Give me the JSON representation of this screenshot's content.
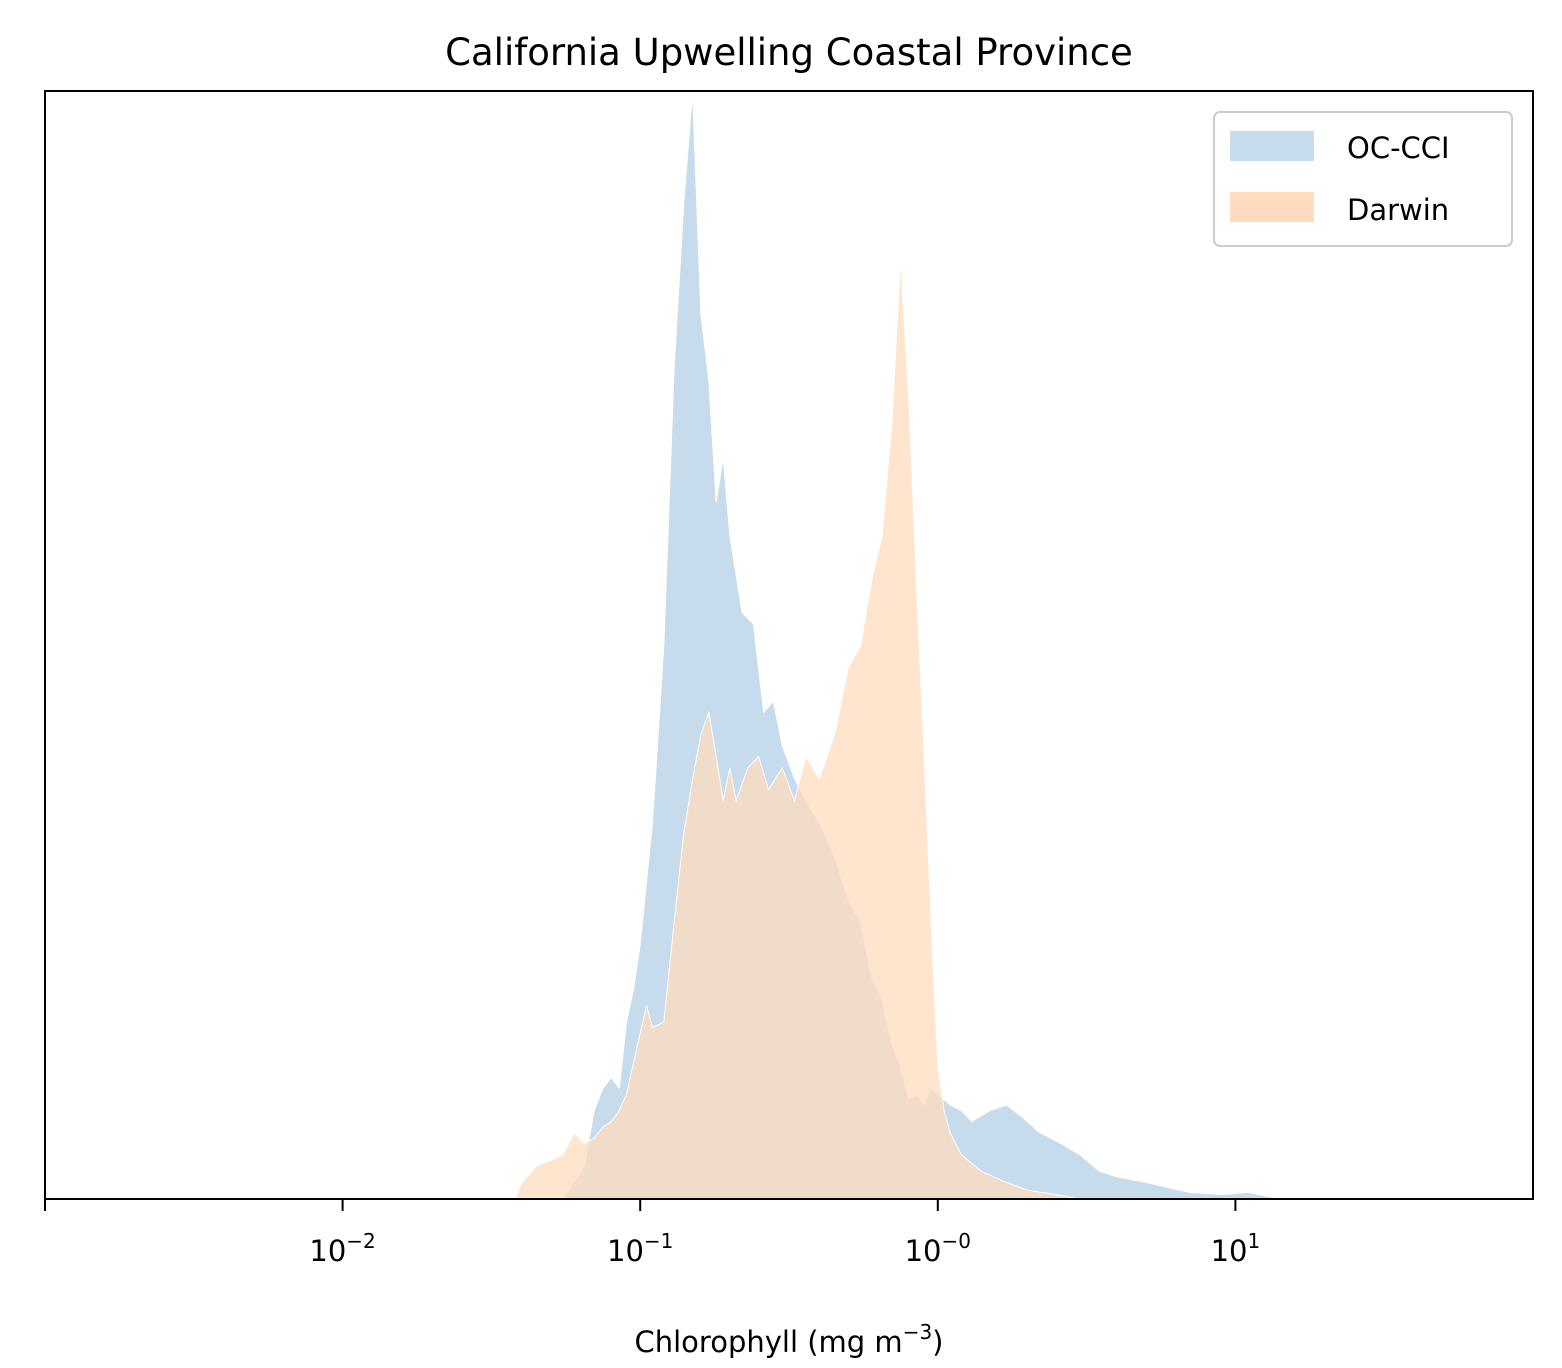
{
  "chart_data": {
    "type": "area",
    "title": "California Upwelling Coastal Province",
    "xlabel": "Chlorophyll  (mg m",
    "xlabel_exp": "−3",
    "xlabel_close": ")",
    "ylabel": "",
    "xscale": "log",
    "xlim": [
      0.001,
      100
    ],
    "ylim": [
      0,
      1
    ],
    "yticks_visible": false,
    "grid": false,
    "legend_position": "top-right",
    "x_ticks": [
      {
        "value": 0.001,
        "base": "",
        "exp": ""
      },
      {
        "value": 0.01,
        "base": "10",
        "exp": "−2"
      },
      {
        "value": 0.1,
        "base": "10",
        "exp": "−1"
      },
      {
        "value": 1,
        "base": "10",
        "exp": "−0"
      },
      {
        "value": 10,
        "base": "10",
        "exp": "1"
      }
    ],
    "series": [
      {
        "name": "OC-CCI",
        "color": "#c6dbec",
        "points": [
          [
            0.055,
            0.0
          ],
          [
            0.06,
            0.015
          ],
          [
            0.065,
            0.03
          ],
          [
            0.07,
            0.08
          ],
          [
            0.075,
            0.1
          ],
          [
            0.08,
            0.11
          ],
          [
            0.085,
            0.1
          ],
          [
            0.09,
            0.16
          ],
          [
            0.095,
            0.19
          ],
          [
            0.1,
            0.23
          ],
          [
            0.11,
            0.34
          ],
          [
            0.12,
            0.5
          ],
          [
            0.13,
            0.75
          ],
          [
            0.14,
            0.9
          ],
          [
            0.15,
            1.0
          ],
          [
            0.16,
            0.8
          ],
          [
            0.17,
            0.74
          ],
          [
            0.18,
            0.63
          ],
          [
            0.19,
            0.67
          ],
          [
            0.2,
            0.6
          ],
          [
            0.22,
            0.53
          ],
          [
            0.24,
            0.52
          ],
          [
            0.26,
            0.44
          ],
          [
            0.28,
            0.45
          ],
          [
            0.3,
            0.41
          ],
          [
            0.33,
            0.38
          ],
          [
            0.36,
            0.36
          ],
          [
            0.4,
            0.34
          ],
          [
            0.45,
            0.31
          ],
          [
            0.5,
            0.27
          ],
          [
            0.55,
            0.25
          ],
          [
            0.6,
            0.2
          ],
          [
            0.65,
            0.18
          ],
          [
            0.7,
            0.14
          ],
          [
            0.75,
            0.12
          ],
          [
            0.8,
            0.09
          ],
          [
            0.85,
            0.095
          ],
          [
            0.9,
            0.085
          ],
          [
            0.95,
            0.1
          ],
          [
            1.0,
            0.095
          ],
          [
            1.1,
            0.085
          ],
          [
            1.2,
            0.08
          ],
          [
            1.3,
            0.07
          ],
          [
            1.5,
            0.08
          ],
          [
            1.7,
            0.085
          ],
          [
            1.9,
            0.075
          ],
          [
            2.2,
            0.06
          ],
          [
            2.6,
            0.05
          ],
          [
            3.0,
            0.04
          ],
          [
            3.5,
            0.025
          ],
          [
            4.0,
            0.02
          ],
          [
            5.0,
            0.015
          ],
          [
            6.0,
            0.01
          ],
          [
            7.0,
            0.006
          ],
          [
            9.0,
            0.004
          ],
          [
            11.0,
            0.006
          ],
          [
            13.0,
            0.002
          ],
          [
            15.0,
            0.0
          ]
        ]
      },
      {
        "name": "Darwin",
        "color": "#ffdcbd",
        "points": [
          [
            0.038,
            0.0
          ],
          [
            0.04,
            0.015
          ],
          [
            0.045,
            0.03
          ],
          [
            0.05,
            0.035
          ],
          [
            0.055,
            0.04
          ],
          [
            0.06,
            0.06
          ],
          [
            0.065,
            0.05
          ],
          [
            0.07,
            0.055
          ],
          [
            0.075,
            0.065
          ],
          [
            0.08,
            0.07
          ],
          [
            0.085,
            0.08
          ],
          [
            0.09,
            0.095
          ],
          [
            0.1,
            0.15
          ],
          [
            0.105,
            0.175
          ],
          [
            0.11,
            0.155
          ],
          [
            0.12,
            0.16
          ],
          [
            0.13,
            0.25
          ],
          [
            0.14,
            0.33
          ],
          [
            0.15,
            0.38
          ],
          [
            0.16,
            0.42
          ],
          [
            0.17,
            0.44
          ],
          [
            0.18,
            0.4
          ],
          [
            0.19,
            0.36
          ],
          [
            0.2,
            0.39
          ],
          [
            0.21,
            0.36
          ],
          [
            0.23,
            0.39
          ],
          [
            0.25,
            0.4
          ],
          [
            0.27,
            0.37
          ],
          [
            0.3,
            0.39
          ],
          [
            0.33,
            0.36
          ],
          [
            0.36,
            0.4
          ],
          [
            0.4,
            0.38
          ],
          [
            0.45,
            0.42
          ],
          [
            0.5,
            0.48
          ],
          [
            0.55,
            0.5
          ],
          [
            0.6,
            0.56
          ],
          [
            0.65,
            0.6
          ],
          [
            0.7,
            0.7
          ],
          [
            0.75,
            0.85
          ],
          [
            0.8,
            0.72
          ],
          [
            0.85,
            0.55
          ],
          [
            0.9,
            0.4
          ],
          [
            0.95,
            0.25
          ],
          [
            1.0,
            0.12
          ],
          [
            1.05,
            0.08
          ],
          [
            1.1,
            0.06
          ],
          [
            1.2,
            0.04
          ],
          [
            1.4,
            0.025
          ],
          [
            1.7,
            0.015
          ],
          [
            2.0,
            0.008
          ],
          [
            2.5,
            0.004
          ],
          [
            3.0,
            0.0
          ]
        ]
      }
    ]
  }
}
